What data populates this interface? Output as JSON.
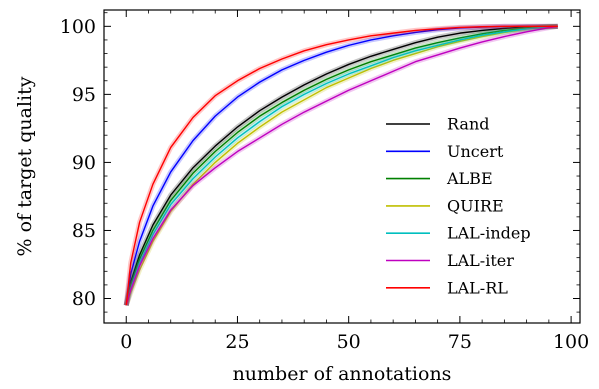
{
  "chart_data": {
    "type": "line",
    "title": "",
    "xlabel": "number of annotations",
    "ylabel": "% of target quality",
    "xlim": [
      -5,
      102
    ],
    "ylim": [
      78.2,
      101.2
    ],
    "xticks": [
      0,
      25,
      50,
      75,
      100
    ],
    "yticks": [
      80,
      85,
      90,
      95,
      100
    ],
    "grid": false,
    "legend_position": "center-right",
    "series": [
      {
        "name": "Rand",
        "color": "#000000",
        "x": [
          0,
          1,
          3,
          6,
          10,
          15,
          20,
          25,
          30,
          35,
          40,
          45,
          50,
          55,
          60,
          65,
          70,
          75,
          80,
          85,
          90,
          95,
          97
        ],
        "y": [
          79.5,
          81.2,
          83.2,
          85.4,
          87.6,
          89.6,
          91.2,
          92.6,
          93.8,
          94.8,
          95.7,
          96.5,
          97.2,
          97.8,
          98.3,
          98.8,
          99.2,
          99.5,
          99.7,
          99.85,
          99.95,
          100.0,
          100.0
        ]
      },
      {
        "name": "Uncert",
        "color": "#0000ff",
        "x": [
          0,
          1,
          3,
          6,
          10,
          15,
          20,
          25,
          30,
          35,
          40,
          45,
          50,
          55,
          60,
          65,
          70,
          75,
          80,
          85,
          90,
          95,
          97
        ],
        "y": [
          79.5,
          81.8,
          84.2,
          86.8,
          89.3,
          91.6,
          93.4,
          94.8,
          95.9,
          96.8,
          97.5,
          98.1,
          98.6,
          99.0,
          99.3,
          99.55,
          99.75,
          99.88,
          99.95,
          100.0,
          100.0,
          100.0,
          100.0
        ]
      },
      {
        "name": "ALBE",
        "color": "#008000",
        "x": [
          0,
          1,
          3,
          6,
          10,
          15,
          20,
          25,
          30,
          35,
          40,
          45,
          50,
          55,
          60,
          65,
          70,
          75,
          80,
          85,
          90,
          95,
          97
        ],
        "y": [
          79.5,
          81.0,
          82.9,
          85.0,
          87.2,
          89.2,
          90.8,
          92.2,
          93.4,
          94.4,
          95.3,
          96.1,
          96.8,
          97.4,
          97.9,
          98.4,
          98.8,
          99.15,
          99.45,
          99.7,
          99.85,
          99.97,
          100.0
        ]
      },
      {
        "name": "QUIRE",
        "color": "#bfbf00",
        "x": [
          0,
          1,
          3,
          6,
          10,
          15,
          20,
          25,
          30,
          35,
          40,
          45,
          50,
          55,
          60,
          65,
          70,
          75,
          80,
          85,
          90,
          95,
          97
        ],
        "y": [
          79.5,
          80.4,
          82.1,
          84.2,
          86.4,
          88.4,
          90.0,
          91.4,
          92.6,
          93.7,
          94.6,
          95.5,
          96.2,
          96.9,
          97.5,
          98.0,
          98.5,
          98.9,
          99.25,
          99.55,
          99.8,
          99.95,
          100.0
        ]
      },
      {
        "name": "LAL-indep",
        "color": "#00bfbf",
        "x": [
          0,
          1,
          3,
          6,
          10,
          15,
          20,
          25,
          30,
          35,
          40,
          45,
          50,
          55,
          60,
          65,
          70,
          75,
          80,
          85,
          90,
          95,
          97
        ],
        "y": [
          79.5,
          80.7,
          82.6,
          84.7,
          86.9,
          88.8,
          90.4,
          91.8,
          93.0,
          94.1,
          95.0,
          95.8,
          96.5,
          97.1,
          97.7,
          98.2,
          98.6,
          99.0,
          99.35,
          99.6,
          99.82,
          99.95,
          100.0
        ]
      },
      {
        "name": "LAL-iter",
        "color": "#bf00bf",
        "x": [
          0,
          1,
          3,
          6,
          10,
          15,
          20,
          25,
          30,
          35,
          40,
          45,
          50,
          55,
          60,
          65,
          70,
          75,
          80,
          85,
          90,
          95,
          97
        ],
        "y": [
          79.5,
          80.6,
          82.4,
          84.4,
          86.5,
          88.3,
          89.6,
          90.8,
          91.8,
          92.8,
          93.7,
          94.5,
          95.3,
          96.0,
          96.7,
          97.4,
          97.9,
          98.4,
          98.85,
          99.25,
          99.6,
          99.9,
          100.0
        ]
      },
      {
        "name": "LAL-RL",
        "color": "#ff0000",
        "x": [
          0,
          1,
          3,
          6,
          10,
          15,
          20,
          25,
          30,
          35,
          40,
          45,
          50,
          55,
          60,
          65,
          70,
          75,
          80,
          85,
          90,
          95,
          97
        ],
        "y": [
          79.5,
          82.6,
          85.6,
          88.4,
          91.1,
          93.3,
          94.9,
          96.0,
          96.9,
          97.6,
          98.2,
          98.65,
          99.0,
          99.3,
          99.5,
          99.7,
          99.82,
          99.92,
          99.97,
          100.0,
          100.0,
          100.0,
          100.0
        ]
      }
    ]
  }
}
